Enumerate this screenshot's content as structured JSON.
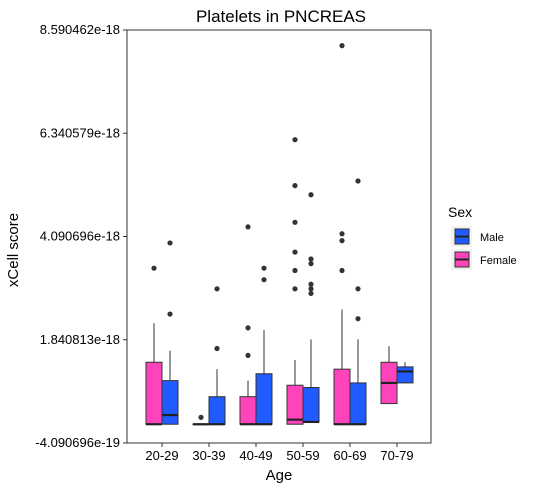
{
  "chart_data": {
    "type": "box",
    "title": "Platelets in PNCREAS",
    "xlabel": "Age",
    "ylabel": "xCell score",
    "categories": [
      "20-29",
      "30-39",
      "40-49",
      "50-59",
      "60-69",
      "70-79"
    ],
    "y_ticks": [
      "8.590462e-18",
      "6.340579e-18",
      "4.090696e-18",
      "1.840813e-18",
      "-4.090696e-19"
    ],
    "y_tick_values": [
      8.590462e-18,
      6.340579e-18,
      4.090696e-18,
      1.840813e-18,
      -4.090696e-19
    ],
    "ylim": [
      -4.090696e-19,
      8.590462e-18
    ],
    "grid": false,
    "legend": {
      "title": "Sex",
      "placement": "right",
      "entries": [
        {
          "label": "Male",
          "color": "#1f5bff"
        },
        {
          "label": "Female",
          "color": "#ff44bb"
        }
      ]
    },
    "series": [
      {
        "name": "Female",
        "color": "#ff44bb",
        "boxes": [
          {
            "category": "20-29",
            "min": 0.0,
            "q1": 0.0,
            "median": 0.0,
            "q3": 1.35e-18,
            "max": 2.2e-18,
            "outliers": [
              3.4e-18
            ]
          },
          {
            "category": "30-39",
            "min": 0.0,
            "q1": 0.0,
            "median": 0.0,
            "q3": 0.0,
            "max": 0.0,
            "outliers": [
              1.5e-19
            ]
          },
          {
            "category": "40-49",
            "min": 0.0,
            "q1": 0.0,
            "median": 0.0,
            "q3": 6e-19,
            "max": 9.5e-19,
            "outliers": [
              1.5e-18,
              2.1e-18,
              4.3e-18
            ]
          },
          {
            "category": "50-59",
            "min": 0.0,
            "q1": 0.0,
            "median": 1e-19,
            "q3": 8.5e-19,
            "max": 1.4e-18,
            "outliers": [
              2.95e-18,
              3.35e-18,
              3.75e-18,
              4.4e-18,
              5.2e-18,
              6.2e-18
            ]
          },
          {
            "category": "60-69",
            "min": 0.0,
            "q1": 0.0,
            "median": 0.0,
            "q3": 1.2e-18,
            "max": 2.5e-18,
            "outliers": [
              3.35e-18,
              4e-18,
              4.15e-18,
              8.25e-18
            ]
          },
          {
            "category": "70-79",
            "min": 4.5e-19,
            "q1": 4.5e-19,
            "median": 9e-19,
            "q3": 1.35e-18,
            "max": 1.7e-18,
            "outliers": []
          }
        ]
      },
      {
        "name": "Male",
        "color": "#1f5bff",
        "boxes": [
          {
            "category": "20-29",
            "min": 0.0,
            "q1": 0.0,
            "median": 2e-19,
            "q3": 9.5e-19,
            "max": 1.6e-18,
            "outliers": [
              2.4e-18,
              3.95e-18
            ]
          },
          {
            "category": "30-39",
            "min": 0.0,
            "q1": 0.0,
            "median": 0.0,
            "q3": 6e-19,
            "max": 1.2e-18,
            "outliers": [
              1.65e-18,
              2.95e-18
            ]
          },
          {
            "category": "40-49",
            "min": 0.0,
            "q1": 0.0,
            "median": 0.0,
            "q3": 1.1e-18,
            "max": 2.05e-18,
            "outliers": [
              3.15e-18,
              3.4e-18
            ]
          },
          {
            "category": "50-59",
            "min": 5e-20,
            "q1": 5e-20,
            "median": 5e-20,
            "q3": 8e-19,
            "max": 1.85e-18,
            "outliers": [
              2.85e-18,
              2.95e-18,
              3.05e-18,
              3.5e-18,
              3.6e-18,
              5e-18
            ]
          },
          {
            "category": "60-69",
            "min": 0.0,
            "q1": 0.0,
            "median": 0.0,
            "q3": 9e-19,
            "max": 1.85e-18,
            "outliers": [
              2.3e-18,
              2.95e-18,
              5.3e-18
            ]
          },
          {
            "category": "70-79",
            "min": 9e-19,
            "q1": 9e-19,
            "median": 1.15e-18,
            "q3": 1.25e-18,
            "max": 1.35e-18,
            "outliers": []
          }
        ]
      }
    ]
  }
}
